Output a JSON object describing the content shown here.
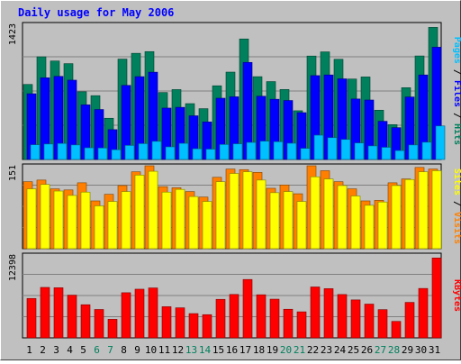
{
  "chart_data": {
    "type": "bar",
    "title": "Daily usage for May 2006",
    "categories": [
      "1",
      "2",
      "3",
      "4",
      "5",
      "6",
      "7",
      "8",
      "9",
      "10",
      "11",
      "12",
      "13",
      "14",
      "15",
      "16",
      "17",
      "18",
      "19",
      "20",
      "21",
      "22",
      "23",
      "24",
      "25",
      "26",
      "27",
      "28",
      "29",
      "30",
      "31"
    ],
    "weekend_days": [
      "6",
      "7",
      "13",
      "14",
      "20",
      "21",
      "27",
      "28"
    ],
    "panels": [
      {
        "max_label": "1423",
        "ylim": [
          0,
          1423
        ],
        "ylabel": [
          "Pages",
          "Files",
          "Hits"
        ],
        "series": [
          {
            "name": "Hits",
            "color": "#00805c",
            "values": [
              790,
              1081,
              1037,
              1009,
              713,
              672,
              434,
              1057,
              1118,
              1136,
              705,
              736,
              588,
              535,
              776,
              920,
              1269,
              872,
              820,
              737,
              513,
              1089,
              1133,
              1055,
              847,
              869,
              519,
              367,
              756,
              1090,
              1391
            ]
          },
          {
            "name": "Files",
            "color": "#0000ff",
            "values": [
              692,
              860,
              875,
              835,
              575,
              526,
              314,
              780,
              872,
              919,
              541,
              549,
              460,
              395,
              645,
              660,
              1022,
              666,
              634,
              621,
              493,
              883,
              890,
              849,
              637,
              626,
              402,
              335,
              658,
              890,
              1182
            ]
          },
          {
            "name": "Pages",
            "color": "#00c0ff",
            "values": [
              155,
              163,
              169,
              153,
              123,
              121,
              103,
              148,
              167,
              191,
              133,
              170,
              113,
              109,
              158,
              165,
              180,
              193,
              187,
              171,
              117,
              256,
              230,
              211,
              174,
              143,
              128,
              94,
              153,
              182,
              353
            ]
          }
        ]
      },
      {
        "max_label": "151",
        "ylim": [
          0,
          151
        ],
        "ylabel": [
          "Sites",
          "Visits"
        ],
        "series": [
          {
            "name": "Visits",
            "color": "#ff8000",
            "values": [
              122,
              125,
              109,
              107,
              120,
              87,
              99,
              115,
              140,
              151,
              113,
              111,
              104,
              94,
              130,
              145,
              144,
              139,
              110,
              116,
              100,
              151,
              142,
              122,
              109,
              87,
              88,
              120,
              127,
              148,
              145
            ]
          },
          {
            "name": "Sites",
            "color": "#ffff00",
            "values": [
              109,
              117,
              105,
              97,
              103,
              78,
              86,
              104,
              134,
              141,
              103,
              108,
              95,
              86,
              122,
              137,
              140,
              125,
              102,
              104,
              86,
              131,
              127,
              115,
              96,
              79,
              85,
              115,
              126,
              140,
              142
            ]
          }
        ]
      },
      {
        "max_label": "12398",
        "ylim": [
          0,
          12398
        ],
        "ylabel": [
          "KBytes"
        ],
        "series": [
          {
            "name": "KBytes",
            "color": "#ff0000",
            "values": [
              5895,
              7548,
              7497,
              6394,
              4958,
              4245,
              2779,
              6751,
              7280,
              7468,
              4663,
              4496,
              3630,
              3472,
              5763,
              6494,
              8734,
              6448,
              5789,
              4279,
              3896,
              7615,
              7363,
              6486,
              5678,
              5052,
              4222,
              2464,
              5308,
              7393,
              11950
            ]
          }
        ]
      }
    ]
  }
}
